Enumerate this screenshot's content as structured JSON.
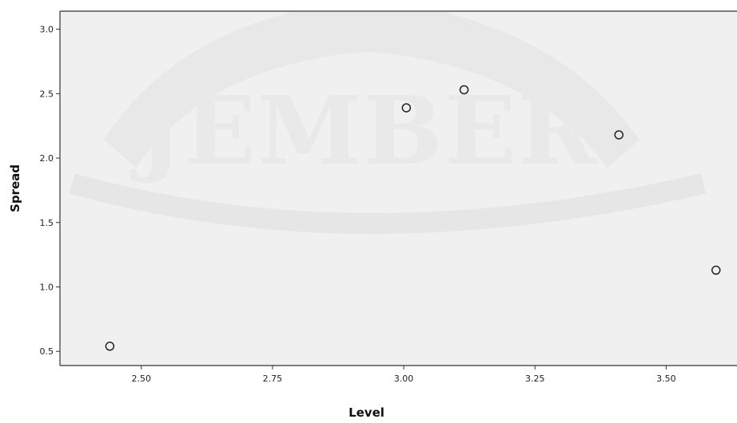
{
  "watermark": {
    "text": "JEMBER"
  },
  "chart_data": {
    "type": "scatter",
    "xlabel": "Level",
    "ylabel": "Spread",
    "xlim": [
      2.345,
      3.635
    ],
    "ylim": [
      0.39,
      3.14
    ],
    "xticks": [
      2.5,
      2.75,
      3.0,
      3.25,
      3.5
    ],
    "xtick_labels": [
      "2.50",
      "2.75",
      "3.00",
      "3.25",
      "3.50"
    ],
    "yticks": [
      0.5,
      1.0,
      1.5,
      2.0,
      2.5,
      3.0
    ],
    "ytick_labels": [
      "0.5",
      "1.0",
      "1.5",
      "2.0",
      "2.5",
      "3.0"
    ],
    "grid": false,
    "points": [
      {
        "x": 2.44,
        "y": 0.54
      },
      {
        "x": 3.005,
        "y": 2.39
      },
      {
        "x": 3.115,
        "y": 2.53
      },
      {
        "x": 3.41,
        "y": 2.18
      },
      {
        "x": 3.595,
        "y": 1.13
      }
    ],
    "plot_background": "#f0f0f0",
    "marker_stroke": "#222222"
  }
}
